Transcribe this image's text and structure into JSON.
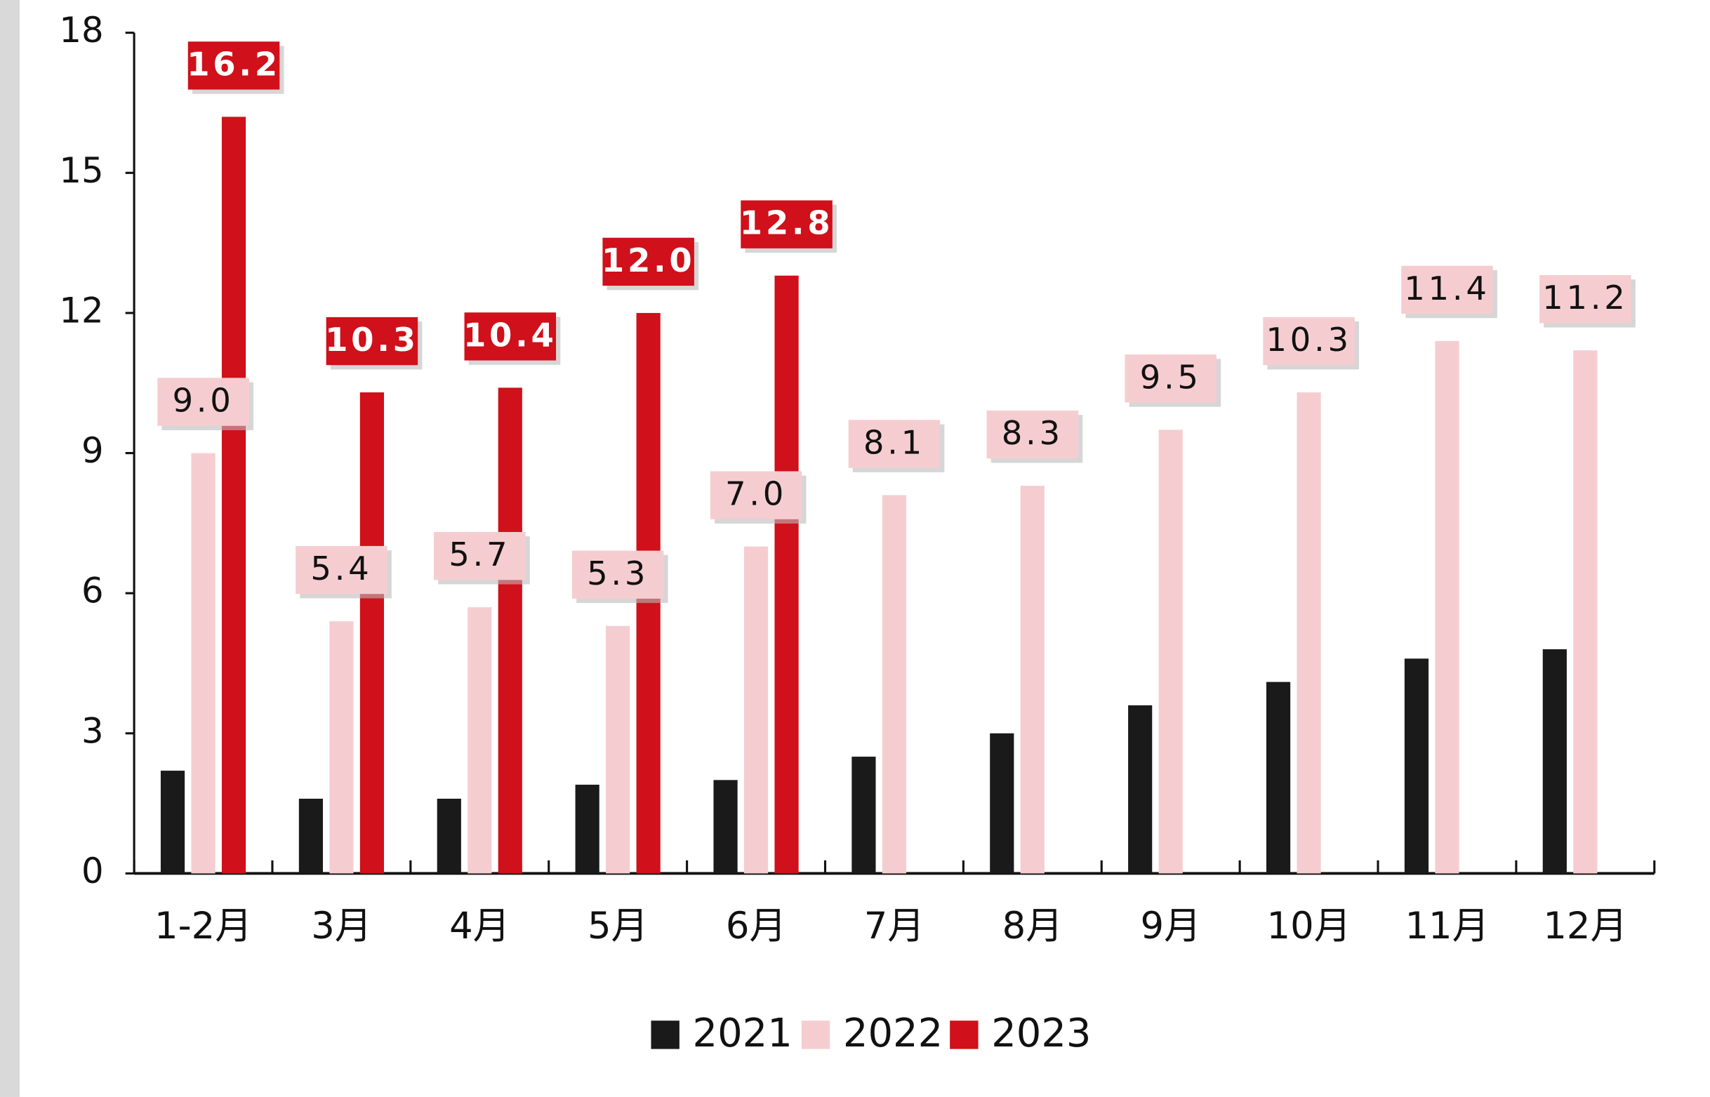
{
  "chart_data": {
    "type": "bar",
    "categories": [
      "1-2月",
      "3月",
      "4月",
      "5月",
      "6月",
      "7月",
      "8月",
      "9月",
      "10月",
      "11月",
      "12月"
    ],
    "series": [
      {
        "name": "2021",
        "color": "#1a1a1a",
        "values": [
          2.2,
          1.6,
          1.6,
          1.9,
          2.0,
          2.5,
          3.0,
          3.6,
          4.1,
          4.6,
          4.8
        ]
      },
      {
        "name": "2022",
        "color": "#f5cdd0",
        "values": [
          9.0,
          5.4,
          5.7,
          5.3,
          7.0,
          8.1,
          8.3,
          9.5,
          10.3,
          11.4,
          11.2
        ],
        "value_labels": [
          "9.0",
          "5.4",
          "5.7",
          "5.3",
          "7.0",
          "8.1",
          "8.3",
          "9.5",
          "10.3",
          "11.4",
          "11.2"
        ]
      },
      {
        "name": "2023",
        "color": "#d0101a",
        "values": [
          16.2,
          10.3,
          10.4,
          12.0,
          12.8,
          null,
          null,
          null,
          null,
          null,
          null
        ],
        "value_labels": [
          "16.2",
          "10.3",
          "10.4",
          "12.0",
          "12.8",
          null,
          null,
          null,
          null,
          null,
          null
        ]
      }
    ],
    "ylim": [
      0,
      18
    ],
    "yticks": [
      0,
      3,
      6,
      9,
      12,
      15,
      18
    ],
    "grid": false,
    "legend": "bottom"
  }
}
